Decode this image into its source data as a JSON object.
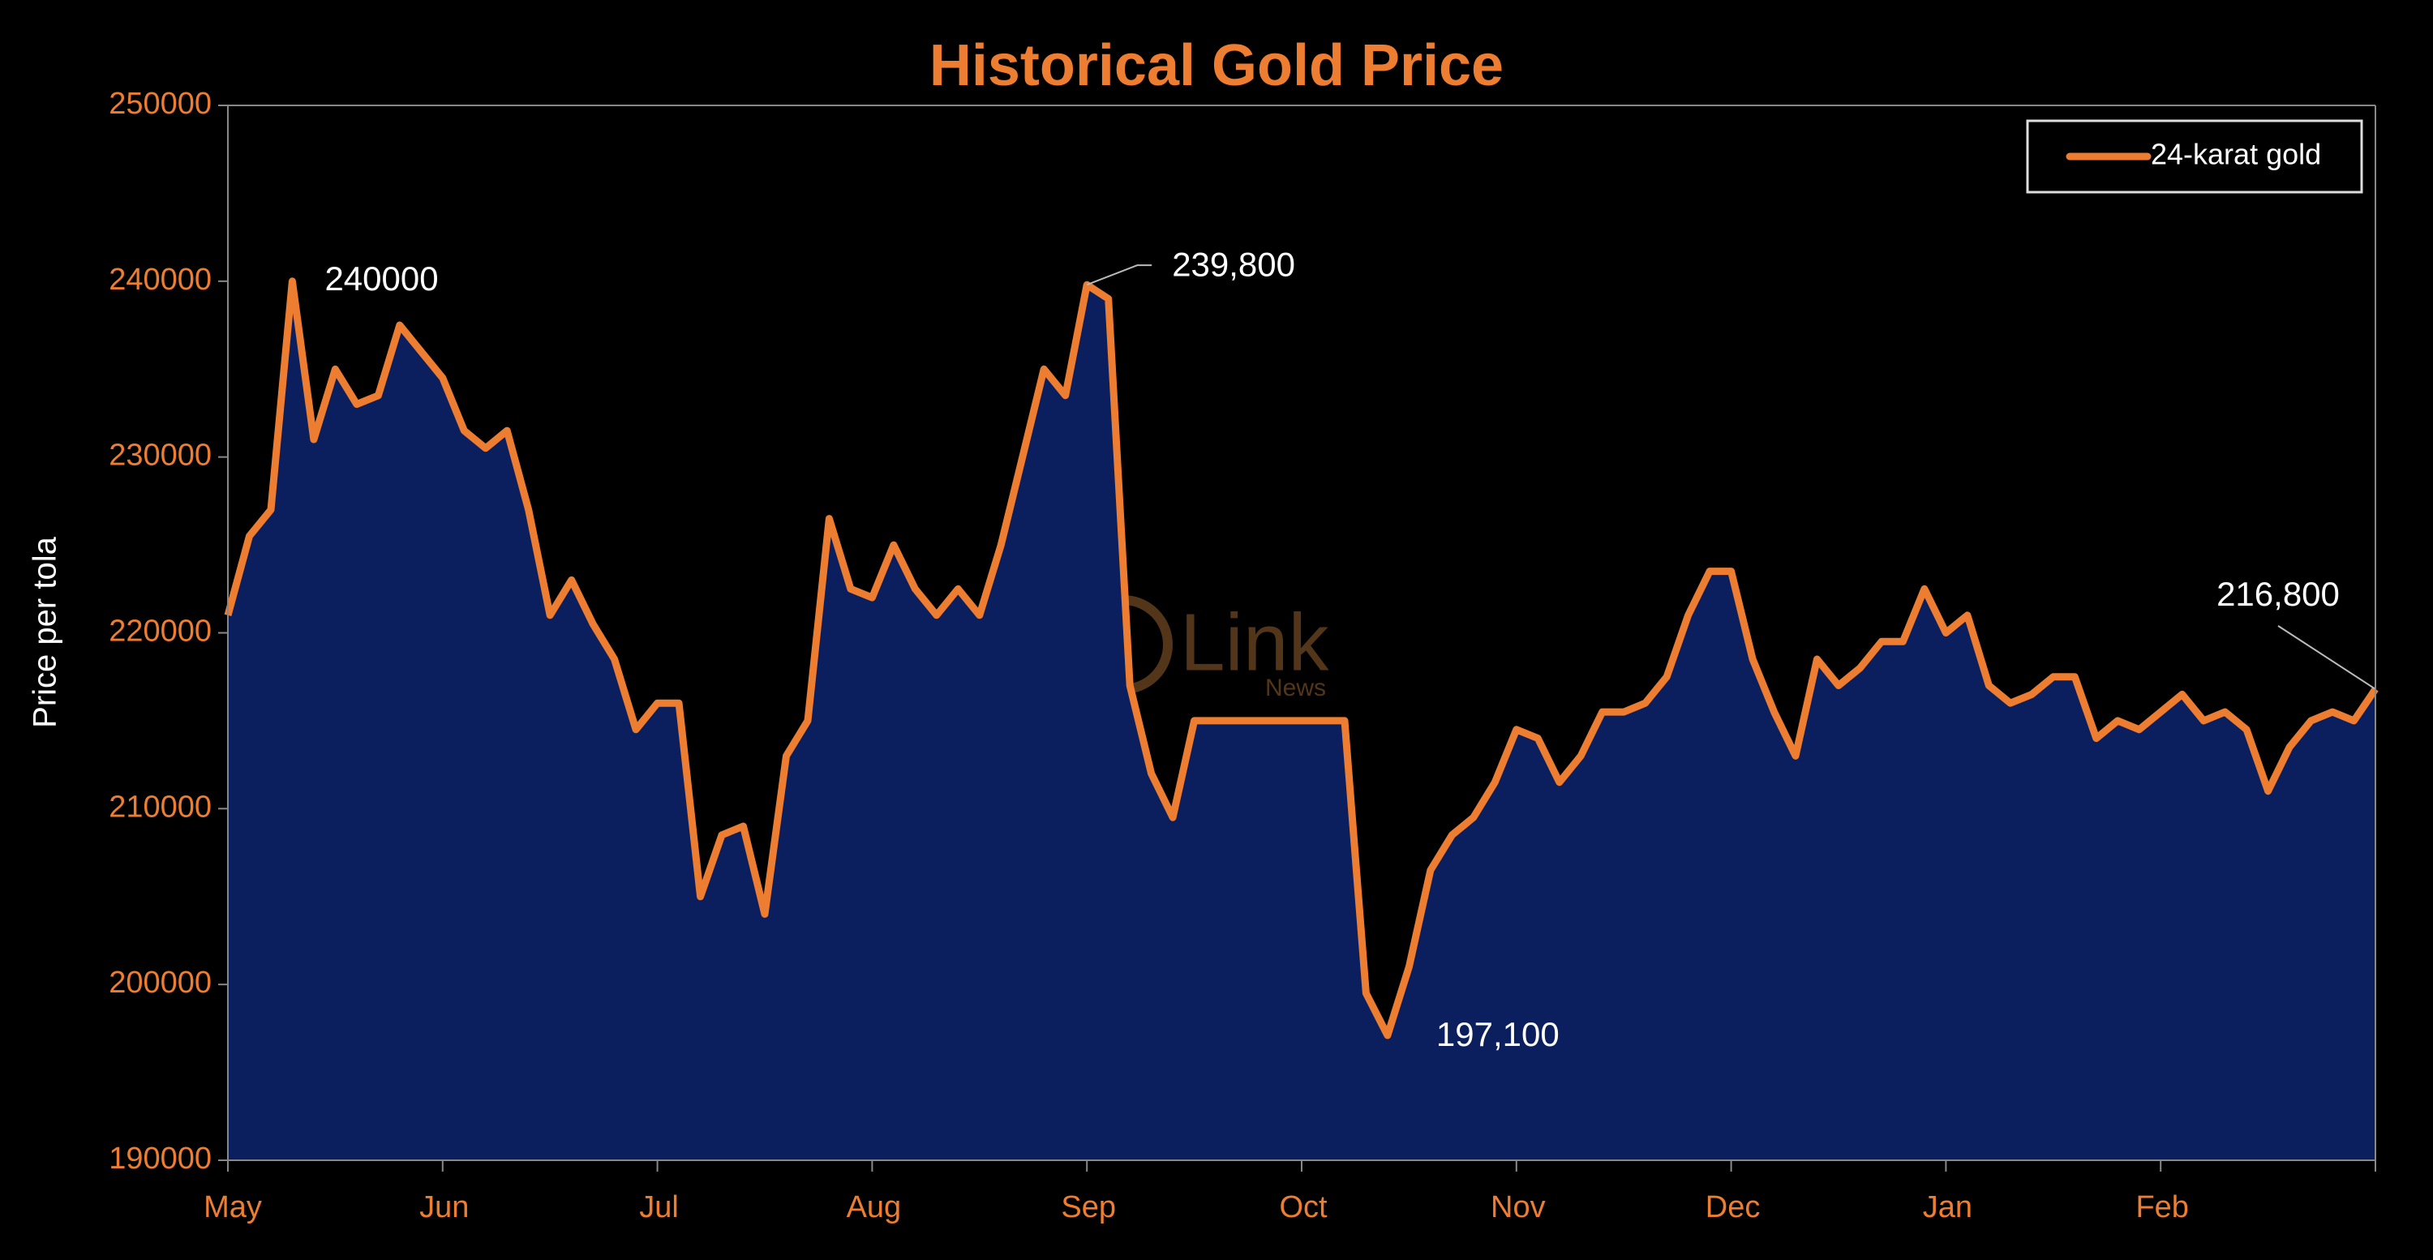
{
  "chart_data": {
    "type": "area",
    "title": "Historical Gold Price",
    "y_label": "Price per tola",
    "watermark": {
      "text": "Link",
      "subtext": "News"
    },
    "categories": [
      "May",
      null,
      null,
      null,
      null,
      null,
      null,
      null,
      null,
      null,
      "Jun",
      null,
      null,
      null,
      null,
      null,
      null,
      null,
      null,
      null,
      "Jul",
      null,
      null,
      null,
      null,
      null,
      null,
      null,
      null,
      null,
      "Aug",
      null,
      null,
      null,
      null,
      null,
      null,
      null,
      null,
      null,
      "Sep",
      null,
      null,
      null,
      null,
      null,
      null,
      null,
      null,
      null,
      "Oct",
      null,
      null,
      null,
      null,
      null,
      null,
      null,
      null,
      null,
      "Nov",
      null,
      null,
      null,
      null,
      null,
      null,
      null,
      null,
      null,
      "Dec",
      null,
      null,
      null,
      null,
      null,
      null,
      null,
      null,
      null,
      "Jan",
      null,
      null,
      null,
      null,
      null,
      null,
      null,
      null,
      null,
      "Feb",
      null,
      null,
      null,
      null,
      null,
      null,
      null,
      null,
      null,
      null
    ],
    "series": [
      {
        "name": "24-karat gold",
        "color": "#ED7D31",
        "fill": "#0B1F5E",
        "values": [
          221000,
          225500,
          227000,
          240000,
          231000,
          235000,
          233000,
          233500,
          237500,
          236000,
          234500,
          231500,
          230500,
          231500,
          227000,
          221000,
          223000,
          220500,
          218500,
          214500,
          216000,
          216000,
          205000,
          208500,
          209000,
          204000,
          213000,
          215000,
          226500,
          222500,
          222000,
          225000,
          222500,
          221000,
          222500,
          221000,
          225000,
          230000,
          235000,
          233500,
          239800,
          239000,
          217000,
          212000,
          209500,
          215000,
          215000,
          215000,
          215000,
          215000,
          215000,
          215000,
          215000,
          199500,
          197100,
          201000,
          206500,
          208500,
          209500,
          211500,
          214500,
          214000,
          211500,
          213000,
          215500,
          215500,
          216000,
          217500,
          221000,
          223500,
          223500,
          218500,
          215500,
          213000,
          218500,
          217000,
          218000,
          219500,
          219500,
          222500,
          220000,
          221000,
          217000,
          216000,
          216500,
          217500,
          217500,
          214000,
          215000,
          214500,
          215500,
          216500,
          215000,
          215500,
          214500,
          211000,
          213500,
          215000,
          215500,
          215000,
          216800
        ],
        "value_labels": [
          null,
          null,
          null,
          "240000",
          null,
          null,
          null,
          null,
          null,
          null,
          null,
          null,
          null,
          null,
          null,
          null,
          null,
          null,
          null,
          null,
          null,
          null,
          null,
          null,
          null,
          null,
          null,
          null,
          null,
          null,
          null,
          null,
          null,
          null,
          null,
          null,
          null,
          null,
          null,
          null,
          "239,800",
          null,
          null,
          null,
          null,
          null,
          null,
          null,
          null,
          null,
          null,
          null,
          null,
          null,
          "197,100",
          null,
          null,
          null,
          null,
          null,
          null,
          null,
          null,
          null,
          null,
          null,
          null,
          null,
          null,
          null,
          null,
          null,
          null,
          null,
          null,
          null,
          null,
          null,
          null,
          null,
          null,
          null,
          null,
          null,
          null,
          null,
          null,
          null,
          null,
          null,
          null,
          null,
          null,
          null,
          null,
          null,
          null,
          null,
          null,
          null,
          "216,800"
        ]
      }
    ],
    "ylim": [
      190000,
      250000
    ],
    "yticks": [
      190000,
      200000,
      210000,
      220000,
      230000,
      240000,
      250000
    ],
    "legend": "top-right"
  }
}
